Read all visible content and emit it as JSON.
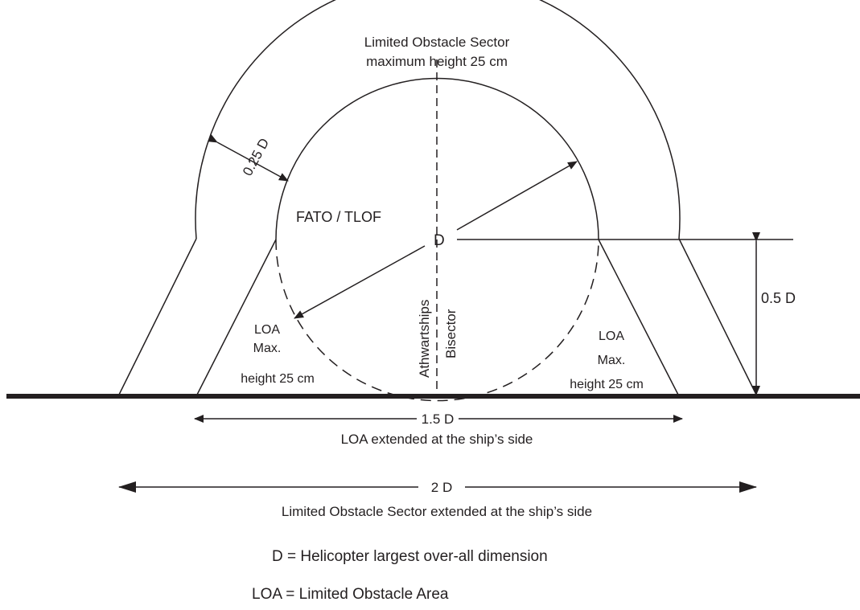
{
  "labels": {
    "sector_title_1": "Limited Obstacle Sector",
    "sector_title_2": "maximum height 25 cm",
    "sector_width": "0.25 D",
    "fato_tlof": "FATO / TLOF",
    "center_d": "D",
    "athwartships": "Athwartships",
    "bisector": "Bisector",
    "half_d": "0.5 D",
    "loa_left_1": "LOA",
    "loa_left_2": "Max.",
    "loa_left_3": "height 25 cm",
    "loa_right_1": "LOA",
    "loa_right_2": "Max.",
    "loa_right_3": "height 25 cm",
    "dim_15d": "1.5 D",
    "dim_15d_caption": "LOA extended at the ship’s side",
    "dim_2d": "2 D",
    "dim_2d_caption": "Limited Obstacle Sector extended at the ship’s side"
  },
  "legend": {
    "d_definition": "D = Helicopter largest over-all dimension",
    "loa_definition": "LOA = Limited Obstacle Area"
  },
  "colors": {
    "ink": "#231f20",
    "background": "#ffffff"
  }
}
